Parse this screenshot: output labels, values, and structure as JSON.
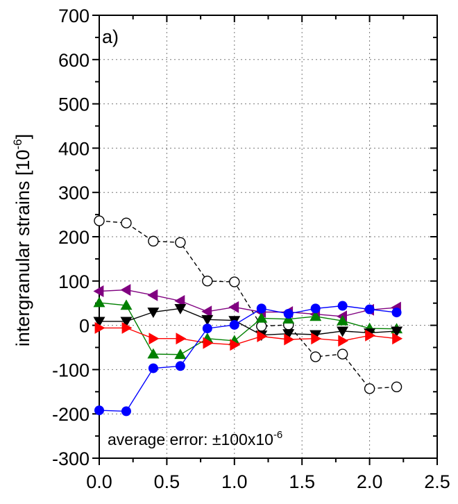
{
  "chart_data": {
    "type": "line",
    "panel_label": "a)",
    "annotation": "average error: ±100x10",
    "annotation_sup": "-6",
    "xlabel": "",
    "ylabel": "intergranular strains [10",
    "ylabel_sup": "-6",
    "ylabel_close": "]",
    "xlim": [
      0.0,
      2.5
    ],
    "ylim": [
      -300,
      700
    ],
    "xticks": [
      "0.0",
      "0.5",
      "1.0",
      "1.5",
      "2.0",
      "2.5"
    ],
    "yticks": [
      "-300",
      "-200",
      "-100",
      "0",
      "100",
      "200",
      "300",
      "400",
      "500",
      "600",
      "700"
    ],
    "grid": true,
    "x": [
      0.0,
      0.2,
      0.4,
      0.6,
      0.8,
      1.0,
      1.2,
      1.4,
      1.6,
      1.8,
      2.0,
      2.2
    ],
    "series": [
      {
        "color": "#000000",
        "marker": "open-circle",
        "line": "dashed",
        "values": [
          236,
          231,
          190,
          187,
          100,
          98,
          -2,
          1,
          -71,
          -65,
          -143,
          -139
        ]
      },
      {
        "color": "#800080",
        "marker": "triangle-left",
        "line": "solid",
        "values": [
          77,
          80,
          68,
          55,
          31,
          41,
          30,
          30,
          25,
          20,
          35,
          40
        ]
      },
      {
        "color": "#008000",
        "marker": "triangle-up",
        "line": "solid",
        "values": [
          51,
          45,
          -65,
          -66,
          -30,
          -35,
          16,
          14,
          20,
          10,
          -7,
          -8
        ]
      },
      {
        "color": "#000000",
        "marker": "triangle-down",
        "line": "solid",
        "values": [
          9,
          9,
          30,
          38,
          13,
          11,
          -22,
          -19,
          -21,
          -13,
          -17,
          -13
        ]
      },
      {
        "color": "#ff0000",
        "marker": "triangle-right",
        "line": "solid",
        "values": [
          -6,
          -6,
          -30,
          -30,
          -40,
          -44,
          -25,
          -32,
          -30,
          -35,
          -23,
          -30
        ]
      },
      {
        "color": "#0000ff",
        "marker": "filled-circle",
        "line": "solid",
        "values": [
          -192,
          -194,
          -97,
          -92,
          -7,
          1,
          38,
          26,
          38,
          44,
          36,
          29
        ]
      }
    ]
  }
}
